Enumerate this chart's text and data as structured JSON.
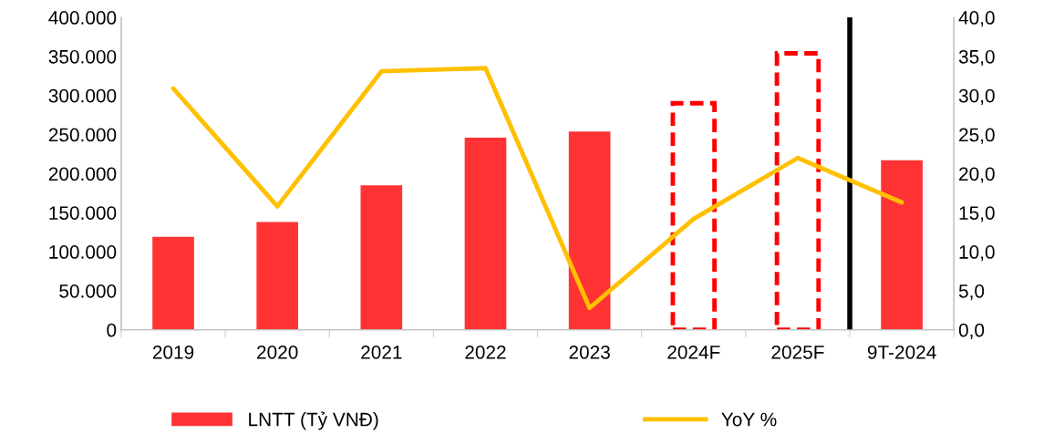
{
  "chart_data": {
    "type": "bar",
    "categories": [
      "2019",
      "2020",
      "2021",
      "2022",
      "2023",
      "2024F",
      "2025F",
      "9T-2024"
    ],
    "series": [
      {
        "name": "LNTT (Tỷ VNĐ)",
        "type": "bar",
        "color": "#ff3333",
        "values": [
          119000,
          138000,
          185000,
          246000,
          254000,
          null,
          null,
          217000
        ]
      },
      {
        "type": "bar",
        "color": "#ff0000",
        "line_style": "dashed",
        "values": [
          null,
          null,
          null,
          null,
          null,
          290000,
          354000,
          null
        ]
      },
      {
        "name": "YoY %",
        "type": "line",
        "axis": "y2",
        "color": "#ffc000",
        "values": [
          30.9,
          15.8,
          33.1,
          33.5,
          2.8,
          14.2,
          22.0,
          16.3
        ]
      }
    ],
    "ylim": [
      0,
      400000
    ],
    "yticks": [
      {
        "value": 0,
        "label": "0"
      },
      {
        "value": 50000,
        "label": "50.000"
      },
      {
        "value": 100000,
        "label": "100.000"
      },
      {
        "value": 150000,
        "label": "150.000"
      },
      {
        "value": 200000,
        "label": "200.000"
      },
      {
        "value": 250000,
        "label": "250.000"
      },
      {
        "value": 300000,
        "label": "300.000"
      },
      {
        "value": 350000,
        "label": "350.000"
      },
      {
        "value": 400000,
        "label": "400.000"
      }
    ],
    "y2lim": [
      0,
      40
    ],
    "y2ticks": [
      {
        "value": 0,
        "label": "0,0"
      },
      {
        "value": 5,
        "label": "5,0"
      },
      {
        "value": 10,
        "label": "10,0"
      },
      {
        "value": 15,
        "label": "15,0"
      },
      {
        "value": 20,
        "label": "20,0"
      },
      {
        "value": 25,
        "label": "25,0"
      },
      {
        "value": 30,
        "label": "30,0"
      },
      {
        "value": 35,
        "label": "35,0"
      },
      {
        "value": 40,
        "label": "40,0"
      }
    ],
    "grid": false,
    "legend": "bottom"
  }
}
